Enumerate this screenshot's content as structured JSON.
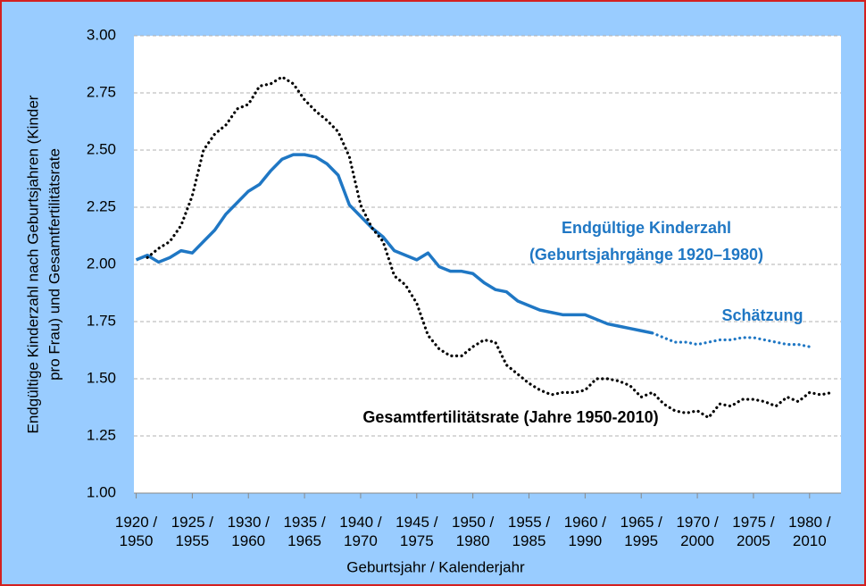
{
  "chart_data": {
    "type": "line",
    "ylabel": [
      "Endgültige Kinderzahl nach Geburtsjahren (Kinder",
      "pro Frau) und Gesamtfertilitätsrate"
    ],
    "xlabel": "Geburtsjahr / Kalenderjahr",
    "annotations": [
      {
        "text": "Endgültige Kinderzahl",
        "color": "#1f77c4"
      },
      {
        "text": "(Geburtsjahrgänge 1920–1980)",
        "color": "#1f77c4"
      },
      {
        "text": "Schätzung",
        "color": "#1f77c4"
      },
      {
        "text": "Gesamtfertilitätsrate (Jahre 1950-2010)",
        "color": "#000000"
      }
    ],
    "x": [
      1920,
      1921,
      1922,
      1923,
      1924,
      1925,
      1926,
      1927,
      1928,
      1929,
      1930,
      1931,
      1932,
      1933,
      1934,
      1935,
      1936,
      1937,
      1938,
      1939,
      1940,
      1941,
      1942,
      1943,
      1944,
      1945,
      1946,
      1947,
      1948,
      1949,
      1950,
      1951,
      1952,
      1953,
      1954,
      1955,
      1956,
      1957,
      1958,
      1959,
      1960,
      1961,
      1962,
      1963,
      1964,
      1965,
      1966,
      1967,
      1968,
      1969,
      1970,
      1971,
      1972,
      1973,
      1974,
      1975,
      1976,
      1977,
      1978,
      1979,
      1980,
      1981,
      1982
    ],
    "series": [
      {
        "color": "#1f77c4",
        "style": "solid",
        "values": [
          2.02,
          2.04,
          2.01,
          2.03,
          2.06,
          2.05,
          2.1,
          2.15,
          2.22,
          2.27,
          2.32,
          2.35,
          2.41,
          2.46,
          2.48,
          2.48,
          2.47,
          2.44,
          2.39,
          2.26,
          2.21,
          2.16,
          2.12,
          2.06,
          2.04,
          2.02,
          2.05,
          1.99,
          1.97,
          1.97,
          1.96,
          1.92,
          1.89,
          1.88,
          1.84,
          1.82,
          1.8,
          1.79,
          1.78,
          1.78,
          1.78,
          1.76,
          1.74,
          1.73,
          1.72,
          1.71,
          1.7,
          null,
          null,
          null,
          null,
          null,
          null,
          null,
          null,
          null,
          null,
          null,
          null,
          null,
          null,
          null,
          null
        ]
      },
      {
        "color": "#1f77c4",
        "style": "dotted",
        "values": [
          null,
          null,
          null,
          null,
          null,
          null,
          null,
          null,
          null,
          null,
          null,
          null,
          null,
          null,
          null,
          null,
          null,
          null,
          null,
          null,
          null,
          null,
          null,
          null,
          null,
          null,
          null,
          null,
          null,
          null,
          null,
          null,
          null,
          null,
          null,
          null,
          null,
          null,
          null,
          null,
          null,
          null,
          null,
          null,
          null,
          null,
          1.7,
          1.68,
          1.66,
          1.66,
          1.65,
          1.66,
          1.67,
          1.67,
          1.68,
          1.68,
          1.67,
          1.66,
          1.65,
          1.65,
          1.64,
          null,
          null
        ]
      },
      {
        "color": "#000000",
        "style": "dotted",
        "values": [
          null,
          2.03,
          2.07,
          2.1,
          2.17,
          2.3,
          2.5,
          2.57,
          2.61,
          2.68,
          2.7,
          2.78,
          2.79,
          2.82,
          2.79,
          2.72,
          2.67,
          2.63,
          2.58,
          2.47,
          2.26,
          2.16,
          2.1,
          1.95,
          1.91,
          1.83,
          1.69,
          1.63,
          1.6,
          1.6,
          1.64,
          1.67,
          1.66,
          1.56,
          1.52,
          1.48,
          1.45,
          1.43,
          1.44,
          1.44,
          1.45,
          1.5,
          1.5,
          1.49,
          1.47,
          1.42,
          1.44,
          1.39,
          1.36,
          1.35,
          1.36,
          1.33,
          1.39,
          1.38,
          1.41,
          1.41,
          1.4,
          1.38,
          1.42,
          1.4,
          1.44,
          1.43,
          1.44
        ]
      }
    ],
    "xlim": [
      1919.8,
      1982.8
    ],
    "xticks": [
      {
        "value": 1920,
        "label": "1920 / 1950"
      },
      {
        "value": 1925,
        "label": "1925 / 1955"
      },
      {
        "value": 1930,
        "label": "1930 / 1960"
      },
      {
        "value": 1935,
        "label": "1935 / 1965"
      },
      {
        "value": 1940,
        "label": "1940 / 1970"
      },
      {
        "value": 1945,
        "label": "1945 / 1975"
      },
      {
        "value": 1950,
        "label": "1950 / 1980"
      },
      {
        "value": 1955,
        "label": "1955 / 1985"
      },
      {
        "value": 1960,
        "label": "1960 / 1990"
      },
      {
        "value": 1965,
        "label": "1965 / 1995"
      },
      {
        "value": 1970,
        "label": "1970 / 2000"
      },
      {
        "value": 1975,
        "label": "1975 / 2005"
      },
      {
        "value": 1980,
        "label": "1980 / 2010"
      }
    ],
    "ylim": [
      1,
      3
    ],
    "yticks": [
      {
        "value": 1,
        "label": "1.00"
      },
      {
        "value": 1.25,
        "label": "1.25"
      },
      {
        "value": 1.5,
        "label": "1.50"
      },
      {
        "value": 1.75,
        "label": "1.75"
      },
      {
        "value": 2,
        "label": "2.00"
      },
      {
        "value": 2.25,
        "label": "2.25"
      },
      {
        "value": 2.5,
        "label": "2.50"
      },
      {
        "value": 2.75,
        "label": "2.75"
      },
      {
        "value": 3,
        "label": "3.00"
      }
    ],
    "grid": true
  }
}
